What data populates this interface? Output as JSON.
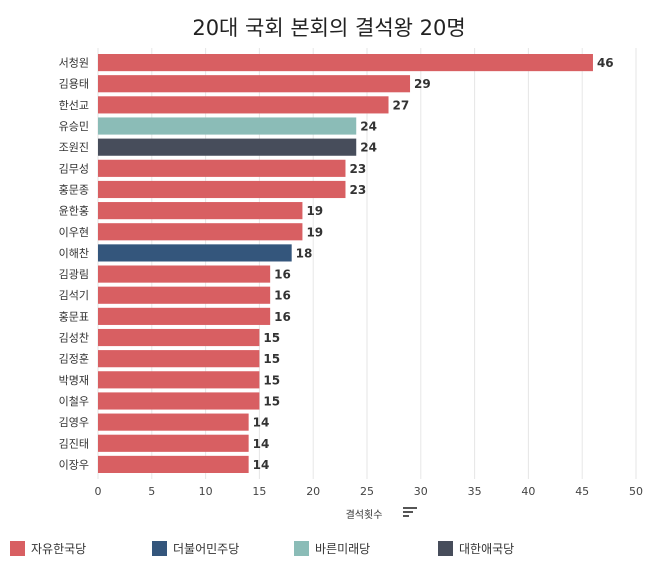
{
  "chart_data": {
    "type": "bar",
    "orientation": "horizontal",
    "title": "20대 국회 본회의 결석왕 20명",
    "xlabel": "결석횟수",
    "ylabel": "",
    "xlim": [
      0,
      50
    ],
    "xticks": [
      0,
      5,
      10,
      15,
      20,
      25,
      30,
      35,
      40,
      45,
      50
    ],
    "grid": true,
    "legend_position": "bottom",
    "categories": [
      "서청원",
      "김용태",
      "한선교",
      "유승민",
      "조원진",
      "김무성",
      "홍문종",
      "윤한홍",
      "이우현",
      "이해찬",
      "김광림",
      "김석기",
      "홍문표",
      "김성찬",
      "김정훈",
      "박명재",
      "이철우",
      "김영우",
      "김진태",
      "이장우"
    ],
    "values": [
      46,
      29,
      27,
      24,
      24,
      23,
      23,
      19,
      19,
      18,
      16,
      16,
      16,
      15,
      15,
      15,
      15,
      14,
      14,
      14
    ],
    "parties": [
      "자유한국당",
      "자유한국당",
      "자유한국당",
      "바른미래당",
      "대한애국당",
      "자유한국당",
      "자유한국당",
      "자유한국당",
      "자유한국당",
      "더불어민주당",
      "자유한국당",
      "자유한국당",
      "자유한국당",
      "자유한국당",
      "자유한국당",
      "자유한국당",
      "자유한국당",
      "자유한국당",
      "자유한국당",
      "자유한국당"
    ],
    "legend": [
      {
        "name": "자유한국당",
        "color": "#d85f62"
      },
      {
        "name": "더불어민주당",
        "color": "#34567c"
      },
      {
        "name": "바른미래당",
        "color": "#8bbcb7"
      },
      {
        "name": "대한애국당",
        "color": "#474d5b"
      }
    ]
  },
  "icons": {
    "sort": "sort-descending-icon"
  }
}
